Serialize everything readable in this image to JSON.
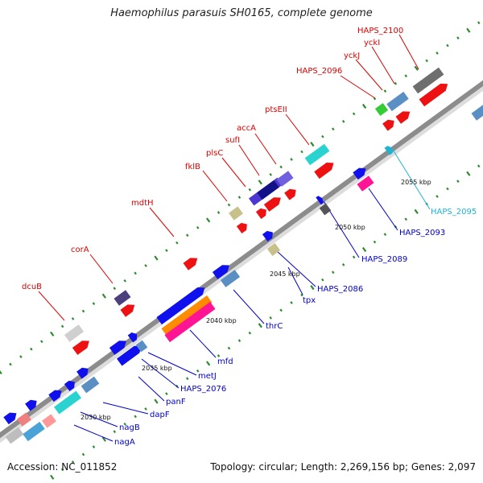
{
  "title": "Haemophilus parasuis SH0165, complete genome",
  "footer": {
    "accession": "Accession: NC_011852",
    "summary": "Topology: circular; Length: 2,269,156 bp; Genes: 2,097"
  },
  "colors": {
    "backbone": "#8c8c8c",
    "tick": "#2e8b2e",
    "label_red": "#e00000",
    "label_blue": "#0000cc",
    "label_cyan": "#1fb3d1"
  },
  "scale_labels": [
    "2030 kbp",
    "2035 kbp",
    "2040 kbp",
    "2045 kbp",
    "2050 kbp",
    "2055 kbp"
  ],
  "gene_labels": {
    "top": [
      "dcuB",
      "corA",
      "mdtH",
      "fklB",
      "plsC",
      "sufI",
      "accA",
      "ptsEII",
      "HAPS_2096",
      "yckJ",
      "yckI",
      "HAPS_2100"
    ],
    "bottom": [
      "nagA",
      "nagB",
      "dapF",
      "panF",
      "HAPS_2076",
      "metJ",
      "mfd",
      "thrC",
      "tpx",
      "HAPS_2086",
      "HAPS_2089",
      "HAPS_2093",
      "HAPS_2095"
    ]
  }
}
